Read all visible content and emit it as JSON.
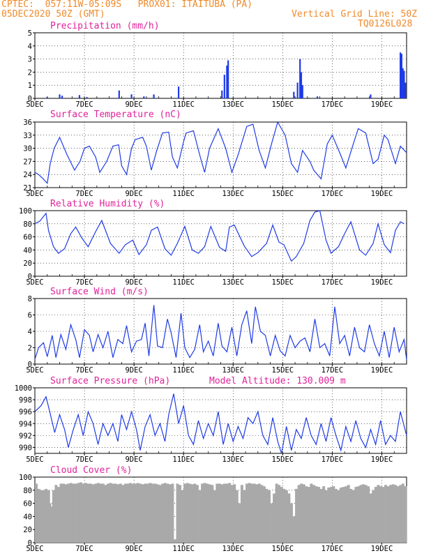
{
  "header": {
    "line1_left": "CPTEC:  057:11W-05:09S   PROX01: ITAITUBA (PA)",
    "line2_left": "05DEC2020 50Z (GMT)",
    "line2_right": "Vertical Grid Line: 50Z",
    "line3_right": "TQ0126L028"
  },
  "colors": {
    "header": "#f08a2a",
    "title": "#e0229a",
    "series": "#1f3be6",
    "cloud": "#a9a9a9"
  },
  "x_date_labels": [
    "5DEC",
    "7DEC",
    "9DEC",
    "11DEC",
    "13DEC",
    "15DEC",
    "17DEC",
    "19DEC"
  ],
  "chart_data": [
    {
      "id": "precip",
      "type": "bar",
      "title": "Precipitation (mm/h)",
      "x_range_days": [
        5,
        20
      ],
      "ylim": [
        0,
        5
      ],
      "yticks": [
        0,
        1,
        2,
        3,
        4,
        5
      ],
      "x": [
        5.5,
        6.0,
        6.1,
        6.8,
        7.1,
        8.4,
        8.9,
        9.4,
        9.8,
        10.8,
        12.55,
        12.65,
        12.75,
        12.8,
        15.45,
        15.6,
        15.7,
        15.75,
        15.8,
        16.4,
        18.55,
        19.75,
        19.8,
        19.85,
        19.9,
        19.95
      ],
      "values": [
        0.1,
        0.3,
        0.2,
        0.25,
        0.1,
        0.6,
        0.3,
        0.15,
        0.3,
        0.9,
        0.6,
        1.8,
        2.5,
        2.9,
        0.5,
        1.2,
        3.0,
        2.0,
        1.0,
        0.15,
        0.3,
        3.5,
        3.4,
        2.3,
        2.1,
        1.2
      ]
    },
    {
      "id": "temp",
      "type": "line",
      "title": "Surface Temperature (nC)",
      "x_range_days": [
        5,
        20
      ],
      "ylim": [
        21,
        36
      ],
      "yticks": [
        21,
        24,
        27,
        30,
        33,
        36
      ],
      "x": [
        5.0,
        5.15,
        5.3,
        5.5,
        5.62,
        5.78,
        6.0,
        6.3,
        6.6,
        6.82,
        7.0,
        7.2,
        7.45,
        7.62,
        7.9,
        8.15,
        8.38,
        8.5,
        8.7,
        8.9,
        9.05,
        9.35,
        9.5,
        9.7,
        9.92,
        10.15,
        10.4,
        10.55,
        10.75,
        11.0,
        11.1,
        11.4,
        11.65,
        11.85,
        12.05,
        12.4,
        12.7,
        12.95,
        13.2,
        13.55,
        13.8,
        14.05,
        14.3,
        14.55,
        14.8,
        15.1,
        15.35,
        15.6,
        15.8,
        16.1,
        16.25,
        16.55,
        16.8,
        17.0,
        17.3,
        17.55,
        17.85,
        18.05,
        18.35,
        18.65,
        18.85,
        19.1,
        19.25,
        19.55,
        19.75,
        20.0
      ],
      "values": [
        24.5,
        24.0,
        23.2,
        22.0,
        26.5,
        30.0,
        32.5,
        28.5,
        25.0,
        27.0,
        30.0,
        30.5,
        28.0,
        24.5,
        27.0,
        30.5,
        30.8,
        26.0,
        24.0,
        30.0,
        32.0,
        32.5,
        30.5,
        25.0,
        29.5,
        33.5,
        33.7,
        28.0,
        25.5,
        31.5,
        33.5,
        34.0,
        28.5,
        24.5,
        30.0,
        34.5,
        30.0,
        24.5,
        28.5,
        35.0,
        35.5,
        29.5,
        25.5,
        31.0,
        36.0,
        33.0,
        26.5,
        24.5,
        29.5,
        27.0,
        25.0,
        23.0,
        31.0,
        33.0,
        29.0,
        25.5,
        31.0,
        34.5,
        33.5,
        26.5,
        27.5,
        33.0,
        32.0,
        26.5,
        30.5,
        29.0
      ]
    },
    {
      "id": "rh",
      "type": "line",
      "title": "Relative Humidity (%)",
      "x_range_days": [
        5,
        20
      ],
      "ylim": [
        0,
        100
      ],
      "yticks": [
        0,
        20,
        40,
        60,
        80,
        100
      ],
      "x": [
        5.0,
        5.2,
        5.45,
        5.55,
        5.75,
        5.95,
        6.2,
        6.45,
        6.65,
        6.9,
        7.15,
        7.45,
        7.7,
        8.05,
        8.4,
        8.65,
        8.95,
        9.2,
        9.5,
        9.7,
        9.95,
        10.25,
        10.5,
        10.75,
        11.05,
        11.35,
        11.6,
        11.85,
        12.1,
        12.45,
        12.7,
        12.85,
        13.05,
        13.45,
        13.75,
        14.0,
        14.35,
        14.6,
        14.85,
        15.05,
        15.35,
        15.55,
        15.85,
        16.1,
        16.3,
        16.5,
        16.75,
        16.95,
        17.25,
        17.5,
        17.75,
        18.1,
        18.35,
        18.65,
        18.85,
        19.1,
        19.35,
        19.55,
        19.75,
        19.9
      ],
      "values": [
        80,
        84,
        96,
        70,
        45,
        35,
        42,
        65,
        75,
        58,
        45,
        68,
        85,
        50,
        35,
        48,
        55,
        33,
        48,
        70,
        75,
        42,
        32,
        50,
        76,
        40,
        35,
        45,
        76,
        44,
        38,
        75,
        78,
        46,
        30,
        36,
        50,
        78,
        52,
        48,
        23,
        30,
        50,
        85,
        98,
        100,
        55,
        35,
        45,
        65,
        83,
        40,
        32,
        50,
        80,
        48,
        36,
        70,
        83,
        80
      ]
    },
    {
      "id": "wind",
      "type": "line",
      "title": "Surface Wind (m/s)",
      "x_range_days": [
        5,
        20
      ],
      "ylim": [
        0,
        8
      ],
      "yticks": [
        0,
        2,
        4,
        6,
        8
      ],
      "x": [
        5.0,
        5.15,
        5.35,
        5.5,
        5.7,
        5.85,
        6.05,
        6.25,
        6.45,
        6.65,
        6.8,
        7.0,
        7.2,
        7.35,
        7.55,
        7.75,
        7.95,
        8.15,
        8.35,
        8.55,
        8.7,
        8.9,
        9.1,
        9.3,
        9.45,
        9.6,
        9.8,
        9.95,
        10.15,
        10.35,
        10.5,
        10.7,
        10.9,
        11.05,
        11.25,
        11.45,
        11.65,
        11.8,
        12.0,
        12.2,
        12.4,
        12.55,
        12.75,
        12.95,
        13.15,
        13.35,
        13.55,
        13.75,
        13.9,
        14.1,
        14.3,
        14.5,
        14.7,
        14.9,
        15.1,
        15.3,
        15.5,
        15.7,
        15.9,
        16.1,
        16.3,
        16.5,
        16.7,
        16.9,
        17.1,
        17.3,
        17.5,
        17.7,
        17.9,
        18.1,
        18.3,
        18.5,
        18.7,
        18.9,
        19.1,
        19.3,
        19.5,
        19.7,
        19.9,
        20.0
      ],
      "values": [
        0.6,
        2.0,
        2.6,
        0.9,
        3.5,
        0.8,
        3.6,
        1.8,
        4.8,
        3.0,
        0.8,
        4.2,
        3.5,
        1.5,
        3.6,
        2.0,
        4.0,
        0.8,
        3.0,
        2.5,
        4.7,
        1.5,
        2.8,
        3.0,
        5.0,
        1.0,
        7.2,
        2.2,
        2.0,
        5.5,
        3.8,
        0.8,
        6.2,
        2.0,
        0.8,
        1.8,
        4.8,
        1.5,
        2.8,
        1.0,
        5.0,
        2.2,
        1.5,
        4.5,
        1.0,
        4.8,
        6.5,
        2.5,
        7.0,
        4.0,
        3.5,
        1.0,
        3.5,
        1.6,
        1.0,
        3.5,
        2.0,
        2.8,
        3.2,
        1.5,
        5.5,
        2.0,
        2.5,
        1.0,
        7.0,
        2.5,
        3.5,
        1.0,
        4.5,
        2.0,
        1.5,
        4.8,
        2.5,
        1.0,
        4.0,
        0.8,
        4.5,
        1.5,
        3.0,
        0.5
      ]
    },
    {
      "id": "pres",
      "type": "line",
      "title": "Surface Pressure (hPa)",
      "annotation": "Model Altitude: 130.009 m",
      "x_range_days": [
        5,
        20
      ],
      "ylim": [
        989,
        1000
      ],
      "yticks": [
        990,
        992,
        994,
        996,
        998,
        1000
      ],
      "x": [
        5.0,
        5.25,
        5.45,
        5.6,
        5.8,
        6.0,
        6.2,
        6.35,
        6.55,
        6.75,
        6.95,
        7.15,
        7.35,
        7.55,
        7.75,
        7.95,
        8.15,
        8.35,
        8.5,
        8.7,
        8.9,
        9.1,
        9.25,
        9.45,
        9.65,
        9.85,
        10.05,
        10.25,
        10.4,
        10.6,
        10.8,
        11.0,
        11.2,
        11.4,
        11.6,
        11.8,
        12.0,
        12.2,
        12.4,
        12.6,
        12.8,
        13.0,
        13.2,
        13.4,
        13.6,
        13.8,
        14.0,
        14.2,
        14.4,
        14.6,
        14.8,
        14.95,
        15.15,
        15.35,
        15.55,
        15.75,
        15.95,
        16.15,
        16.35,
        16.55,
        16.75,
        16.95,
        17.15,
        17.35,
        17.55,
        17.75,
        17.95,
        18.15,
        18.35,
        18.55,
        18.75,
        18.95,
        19.15,
        19.35,
        19.55,
        19.75,
        20.0
      ],
      "values": [
        996.0,
        997.0,
        998.5,
        996.0,
        992.5,
        995.5,
        993.0,
        990.0,
        993.0,
        995.5,
        992.0,
        996.0,
        994.0,
        990.5,
        994.0,
        992.0,
        994.0,
        991.0,
        995.5,
        993.0,
        996.0,
        993.0,
        989.5,
        993.5,
        995.5,
        992.0,
        994.0,
        991.0,
        995.5,
        999.0,
        994.0,
        997.0,
        992.0,
        990.5,
        994.5,
        991.5,
        994.0,
        992.0,
        996.0,
        990.5,
        994.0,
        991.0,
        993.5,
        991.5,
        995.0,
        994.0,
        996.0,
        992.0,
        990.5,
        995.0,
        991.0,
        989.0,
        993.5,
        989.5,
        993.0,
        991.5,
        995.0,
        992.0,
        990.5,
        994.0,
        991.0,
        995.0,
        992.0,
        989.5,
        993.5,
        991.0,
        994.5,
        991.5,
        990.0,
        993.0,
        990.5,
        994.5,
        990.5,
        992.0,
        991.0,
        996.0,
        992.0
      ]
    },
    {
      "id": "cloud",
      "type": "bar",
      "title": "Cloud Cover (%)",
      "x_range_days": [
        5,
        20
      ],
      "ylim": [
        0,
        100
      ],
      "yticks": [
        0,
        20,
        40,
        60,
        80,
        100
      ],
      "x": [
        5.0,
        5.1,
        5.2,
        5.3,
        5.4,
        5.5,
        5.55,
        5.6,
        5.65,
        5.7,
        5.8,
        5.9,
        6.0,
        6.1,
        6.2,
        6.3,
        6.4,
        6.5,
        6.6,
        6.7,
        6.8,
        6.9,
        7.0,
        7.1,
        7.2,
        7.3,
        7.4,
        7.5,
        7.6,
        7.7,
        7.8,
        7.9,
        8.0,
        8.1,
        8.2,
        8.3,
        8.4,
        8.5,
        8.6,
        8.7,
        8.8,
        8.9,
        9.0,
        9.1,
        9.2,
        9.3,
        9.4,
        9.5,
        9.6,
        9.7,
        9.8,
        9.9,
        10.0,
        10.1,
        10.2,
        10.3,
        10.4,
        10.5,
        10.6,
        10.7,
        10.8,
        10.9,
        11.0,
        11.1,
        11.2,
        11.3,
        11.4,
        11.5,
        11.6,
        11.7,
        11.8,
        11.9,
        12.0,
        12.1,
        12.2,
        12.3,
        12.4,
        12.5,
        12.6,
        12.7,
        12.8,
        12.9,
        13.0,
        13.1,
        13.2,
        13.3,
        13.4,
        13.5,
        13.6,
        13.7,
        13.8,
        13.9,
        14.0,
        14.1,
        14.2,
        14.3,
        14.4,
        14.5,
        14.6,
        14.7,
        14.8,
        14.9,
        15.0,
        15.1,
        15.2,
        15.3,
        15.4,
        15.5,
        15.6,
        15.7,
        15.8,
        15.9,
        16.0,
        16.1,
        16.2,
        16.3,
        16.4,
        16.5,
        16.6,
        16.7,
        16.8,
        16.9,
        17.0,
        17.1,
        17.2,
        17.3,
        17.4,
        17.5,
        17.6,
        17.7,
        17.8,
        17.9,
        18.0,
        18.1,
        18.2,
        18.3,
        18.4,
        18.5,
        18.6,
        18.7,
        18.8,
        18.9,
        19.0,
        19.1,
        19.2,
        19.3,
        19.4,
        19.5,
        19.6,
        19.7,
        19.8,
        19.9
      ],
      "values": [
        90,
        82,
        80,
        80,
        82,
        80,
        60,
        30,
        55,
        80,
        88,
        85,
        90,
        90,
        89,
        90,
        91,
        90,
        90,
        91,
        92,
        90,
        91,
        90,
        90,
        89,
        90,
        91,
        90,
        90,
        88,
        90,
        91,
        90,
        90,
        89,
        90,
        88,
        90,
        90,
        91,
        90,
        90,
        91,
        90,
        89,
        90,
        90,
        91,
        90,
        90,
        89,
        88,
        90,
        91,
        90,
        89,
        90,
        5,
        90,
        88,
        80,
        90,
        91,
        90,
        89,
        90,
        88,
        80,
        90,
        91,
        90,
        89,
        88,
        80,
        90,
        90,
        89,
        90,
        90,
        91,
        88,
        89,
        80,
        60,
        88,
        80,
        90,
        91,
        90,
        90,
        89,
        90,
        88,
        86,
        82,
        80,
        60,
        75,
        90,
        88,
        85,
        82,
        80,
        75,
        60,
        40,
        82,
        88,
        90,
        89,
        86,
        85,
        90,
        88,
        86,
        85,
        82,
        86,
        80,
        84,
        85,
        86,
        82,
        80,
        84,
        85,
        86,
        88,
        82,
        80,
        85,
        86,
        88,
        89,
        88,
        86,
        75,
        80,
        85,
        88,
        86,
        85,
        88,
        86,
        88,
        89,
        88,
        86,
        88,
        90,
        86
      ]
    }
  ]
}
